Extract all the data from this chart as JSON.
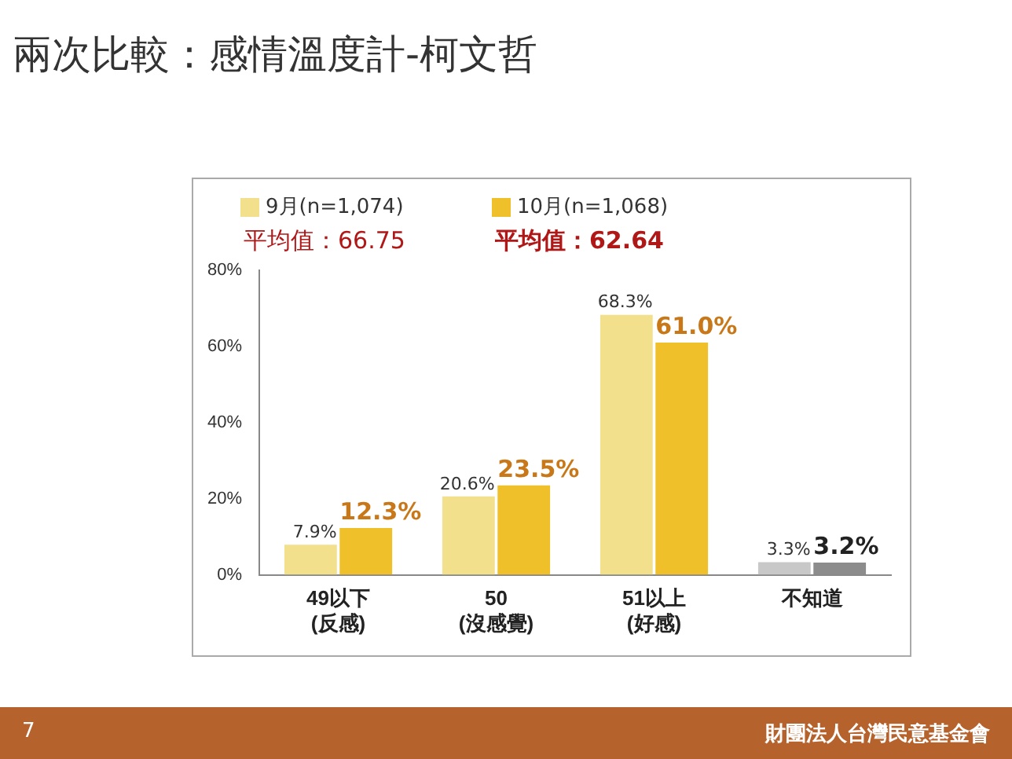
{
  "chart_data": {
    "type": "bar",
    "title": "兩次比較：感情溫度計-柯文哲",
    "categories": [
      "49以下\n(反感)",
      "50\n(沒感覺)",
      "51以上\n(好感)",
      "不知道"
    ],
    "series": [
      {
        "name": "9月(n=1,074)",
        "color": "#f3e08c",
        "colors": [
          "#f3e08c",
          "#f3e08c",
          "#f3e08c",
          "#c8c8c8"
        ],
        "values": [
          7.9,
          20.6,
          68.3,
          3.3
        ],
        "value_labels": [
          "7.9%",
          "20.6%",
          "68.3%",
          "3.3%"
        ]
      },
      {
        "name": "10月(n=1,068)",
        "color": "#efc02a",
        "colors": [
          "#efc02a",
          "#efc02a",
          "#efc02a",
          "#8c8c8c"
        ],
        "values": [
          12.3,
          23.5,
          61.0,
          3.2
        ],
        "value_labels": [
          "12.3%",
          "23.5%",
          "61.0%",
          "3.2%"
        ]
      }
    ],
    "ylim": [
      0,
      80
    ],
    "yticks": [
      {
        "value": 0,
        "label": "0%"
      },
      {
        "value": 20,
        "label": "20%"
      },
      {
        "value": 40,
        "label": "40%"
      },
      {
        "value": 60,
        "label": "60%"
      },
      {
        "value": 80,
        "label": "80%"
      }
    ],
    "grid": false,
    "legend": "top",
    "annotations": [
      "平均值：66.75",
      "平均值：62.64",
      "7",
      "財團法人台灣民意基金會"
    ]
  }
}
